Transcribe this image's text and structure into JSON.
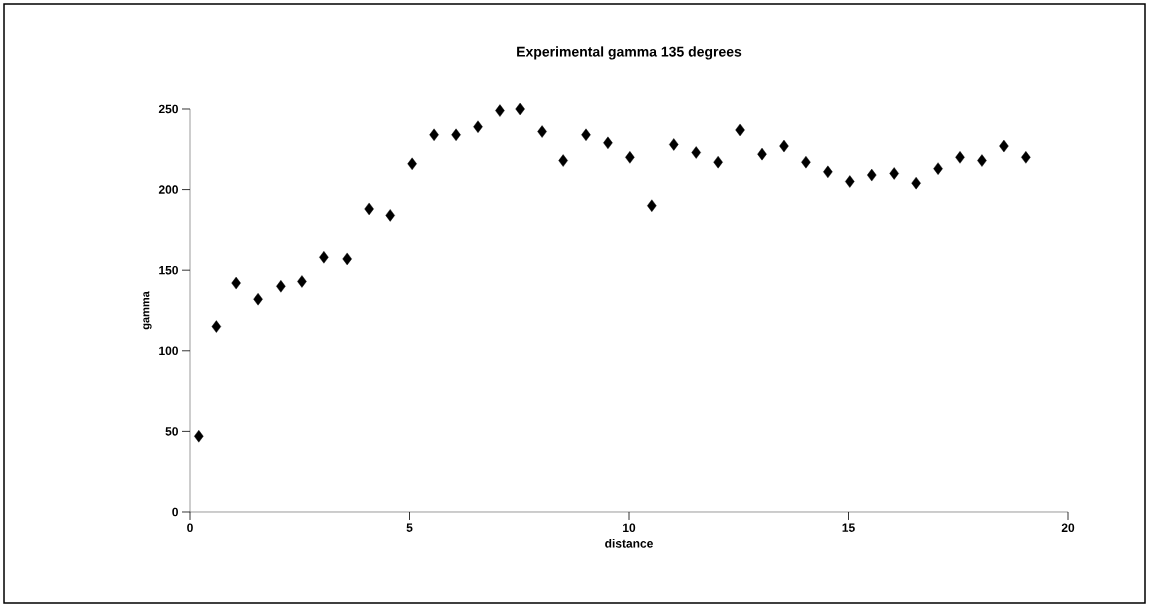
{
  "chart_data": {
    "type": "scatter",
    "title": "Experimental gamma 135 degrees",
    "xlabel": "distance",
    "ylabel": "gamma",
    "x": [
      0.2,
      0.6,
      1.05,
      1.55,
      2.07,
      2.55,
      3.05,
      3.58,
      4.08,
      4.56,
      5.06,
      5.56,
      6.06,
      6.56,
      7.06,
      7.52,
      8.02,
      8.5,
      9.02,
      9.52,
      10.02,
      10.52,
      11.02,
      11.53,
      12.03,
      12.53,
      13.03,
      13.53,
      14.03,
      14.53,
      15.03,
      15.53,
      16.04,
      16.54,
      17.04,
      17.54,
      18.04,
      18.54,
      19.04
    ],
    "values": [
      47,
      115,
      142,
      132,
      140,
      143,
      158,
      157,
      188,
      184,
      216,
      234,
      234,
      239,
      249,
      250,
      236,
      218,
      234,
      229,
      220,
      190,
      228,
      223,
      217,
      237,
      222,
      227,
      217,
      211,
      205,
      209,
      210,
      204,
      213,
      220,
      218,
      227,
      220
    ],
    "color": "#000000",
    "marker": "diamond",
    "xlim": [
      0,
      20
    ],
    "ylim": [
      0,
      250
    ],
    "xticks": [
      0,
      5,
      10,
      15,
      20
    ],
    "yticks": [
      0,
      50,
      100,
      150,
      200,
      250
    ]
  }
}
